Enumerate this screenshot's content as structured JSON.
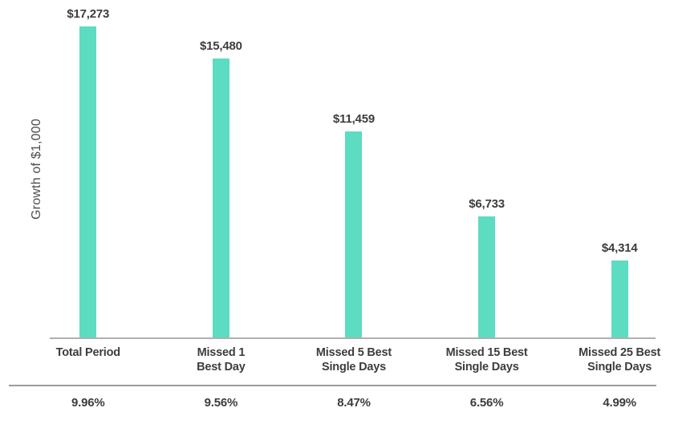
{
  "chart_data": {
    "type": "bar",
    "title": "",
    "xlabel": "",
    "ylabel": "Growth of $1,000",
    "ylim": [
      0,
      17273
    ],
    "grid": false,
    "legend": false,
    "bar_color": "#5cdcc1",
    "axis_line_color": "#b0b0b0",
    "separator_line_color": "#9c9c9c",
    "text_color": "#3d3d3d",
    "categories": [
      "Total Period",
      "Missed 1 Best Day",
      "Missed 5 Best Single Days",
      "Missed 15 Best Single Days",
      "Missed 25 Best Single Days"
    ],
    "category_lines": [
      [
        "Total Period"
      ],
      [
        "Missed 1",
        "Best Day"
      ],
      [
        "Missed 5 Best",
        "Single Days"
      ],
      [
        "Missed 15 Best",
        "Single Days"
      ],
      [
        "Missed 25 Best",
        "Single Days"
      ]
    ],
    "values": [
      17273,
      15480,
      11459,
      6733,
      4314
    ],
    "value_labels": [
      "$17,273",
      "$15,480",
      "$11,459",
      "$6,733",
      "$4,314"
    ],
    "annualized_returns": [
      "9.96%",
      "9.56%",
      "8.47%",
      "6.56%",
      "4.99%"
    ]
  }
}
